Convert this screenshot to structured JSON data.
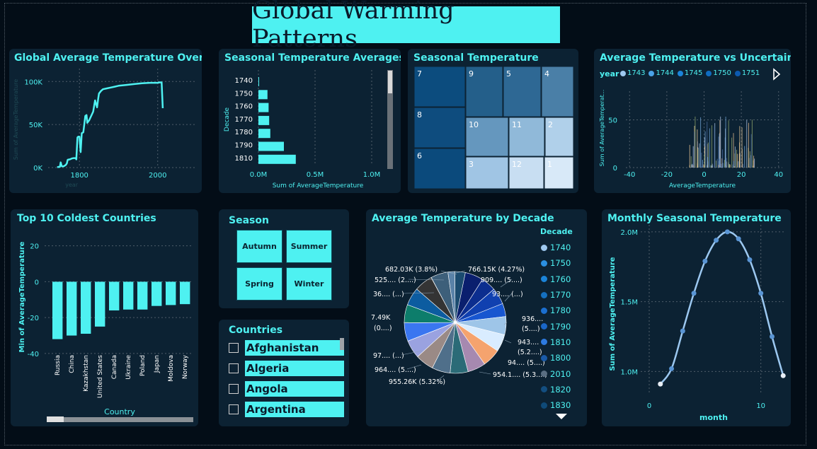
{
  "dashboard": {
    "title": "Global Warming Patterns"
  },
  "colors": {
    "accent": "#4ef1f1",
    "panel": "#0c2233",
    "background": "#030d17"
  },
  "panels": {
    "line_time": "Global Average Temperature Over Time",
    "seasonal_avg": "Seasonal Temperature Averages",
    "treemap": "Seasonal Temperature",
    "scatter": "Average Temperature vs Uncertainty",
    "coldest": "Top 10 Coldest Countries",
    "season": "Season",
    "countries": "Countries",
    "pie": "Average Temperature by Decade",
    "monthly": "Monthly Seasonal Temperature"
  },
  "season_slicer": {
    "buttons": [
      "Autumn",
      "Summer",
      "Spring",
      "Winter"
    ]
  },
  "countries_slicer": {
    "items": [
      "Afghanistan",
      "Algeria",
      "Angola",
      "Argentina"
    ]
  },
  "scatter_legend": {
    "title": "year",
    "items": [
      "1743",
      "1744",
      "1745",
      "1750",
      "1751"
    ]
  },
  "pie_legend": {
    "title": "Decade",
    "items": [
      "1740",
      "1750",
      "1760",
      "1770",
      "1780",
      "1790",
      "1810",
      "1800",
      "2010",
      "1820",
      "1830"
    ]
  },
  "chart_data": [
    {
      "id": "line_time",
      "type": "line",
      "title": "Global Average Temperature Over Time",
      "xlabel": "year",
      "ylabel": "Sum of AverageTemperature",
      "xlim": [
        1720,
        2100
      ],
      "ylim": [
        0,
        115000
      ],
      "xticks": [
        1800,
        2000
      ],
      "yticks": [
        0,
        50000,
        100000
      ],
      "ytick_labels": [
        "0K",
        "50K",
        "100K"
      ],
      "x": [
        1743,
        1750,
        1752,
        1755,
        1760,
        1765,
        1768,
        1770,
        1775,
        1778,
        1780,
        1785,
        1790,
        1792,
        1795,
        1797,
        1800,
        1803,
        1806,
        1810,
        1815,
        1818,
        1820,
        1825,
        1830,
        1835,
        1840,
        1845,
        1848,
        1850,
        1855,
        1860,
        1870,
        1880,
        1890,
        1900,
        1920,
        1940,
        1960,
        1980,
        2000,
        2005,
        2010,
        2013
      ],
      "values": [
        500,
        900,
        6000,
        1500,
        1600,
        3000,
        5000,
        9000,
        9500,
        10000,
        10500,
        11000,
        11000,
        9500,
        35000,
        36000,
        36000,
        18000,
        40000,
        41000,
        60000,
        61000,
        52000,
        55000,
        60000,
        65000,
        78000,
        70000,
        80000,
        86000,
        89000,
        91000,
        92000,
        93000,
        94000,
        95000,
        96000,
        97000,
        98000,
        98500,
        98500,
        99000,
        99000,
        69000
      ]
    },
    {
      "id": "seasonal_avg",
      "type": "bar",
      "orientation": "horizontal",
      "title": "Seasonal Temperature Averages",
      "xlabel": "Sum of AverageTemperature",
      "ylabel": "Decade",
      "categories": [
        "1740",
        "1750",
        "1760",
        "1770",
        "1780",
        "1790",
        "1810"
      ],
      "values": [
        5000,
        80000,
        90000,
        95000,
        105000,
        225000,
        330000
      ],
      "xlim": [
        0,
        1100000
      ],
      "xticks": [
        0,
        500000,
        1000000
      ],
      "xtick_labels": [
        "0.0M",
        "0.5M",
        "1.0M"
      ]
    },
    {
      "id": "treemap",
      "type": "treemap",
      "title": "Seasonal Temperature",
      "labels": [
        "7",
        "9",
        "5",
        "4",
        "8",
        "10",
        "11",
        "2",
        "6",
        "3",
        "12",
        "1"
      ]
    },
    {
      "id": "scatter",
      "type": "scatter",
      "title": "Average Temperature vs Uncertainty",
      "xlabel": "AverageTemperature",
      "ylabel": "Sum of AverageTemperat...",
      "xlim": [
        -42,
        42
      ],
      "ylim": [
        0,
        80
      ],
      "xticks": [
        -40,
        -20,
        0,
        20,
        40
      ],
      "yticks": [
        0,
        50
      ]
    },
    {
      "id": "coldest",
      "type": "bar",
      "title": "Top 10 Coldest Countries",
      "xlabel": "Country",
      "ylabel": "Min of AverageTemperature",
      "categories": [
        "Russia",
        "China",
        "Kazakhstan",
        "United States",
        "Canada",
        "Ukraine",
        "Poland",
        "Japan",
        "Moldova",
        "Norway"
      ],
      "values": [
        -32,
        -30,
        -29,
        -25,
        -16,
        -15.5,
        -15.5,
        -13.5,
        -13,
        -12.5
      ],
      "ylim": [
        -42,
        25
      ],
      "yticks": [
        -40,
        -20,
        0,
        20
      ]
    },
    {
      "id": "pie",
      "type": "pie",
      "title": "Average Temperature by Decade",
      "visible_labels": [
        "682.03K (3.8%)",
        "766.15K (4.27%)",
        "525.... (2....)",
        "909.... (5....)",
        "36.... (...)",
        "93.... (...)",
        "936....",
        "(5....)",
        "7.49K",
        "(0....)",
        "943....",
        "(5.2....)",
        "94.... (5....)",
        "97.... (...)",
        "964.... (5....)",
        "954.1.... (5.3....)",
        "955.26K (5.32%)"
      ]
    },
    {
      "id": "monthly",
      "type": "line",
      "title": "Monthly Seasonal Temperature",
      "xlabel": "month",
      "ylabel": "Sum of AverageTemperature",
      "x": [
        1,
        2,
        3,
        4,
        5,
        6,
        7,
        8,
        9,
        10,
        11,
        12
      ],
      "values": [
        910000,
        1020000,
        1290000,
        1560000,
        1790000,
        1940000,
        2000000,
        1950000,
        1800000,
        1560000,
        1250000,
        970000
      ],
      "xlim": [
        0,
        13
      ],
      "ylim": [
        850000,
        2050000
      ],
      "xticks": [
        0,
        10
      ],
      "yticks": [
        1000000,
        1500000,
        2000000
      ],
      "ytick_labels": [
        "1.0M",
        "1.5M",
        "2.0M"
      ]
    }
  ]
}
